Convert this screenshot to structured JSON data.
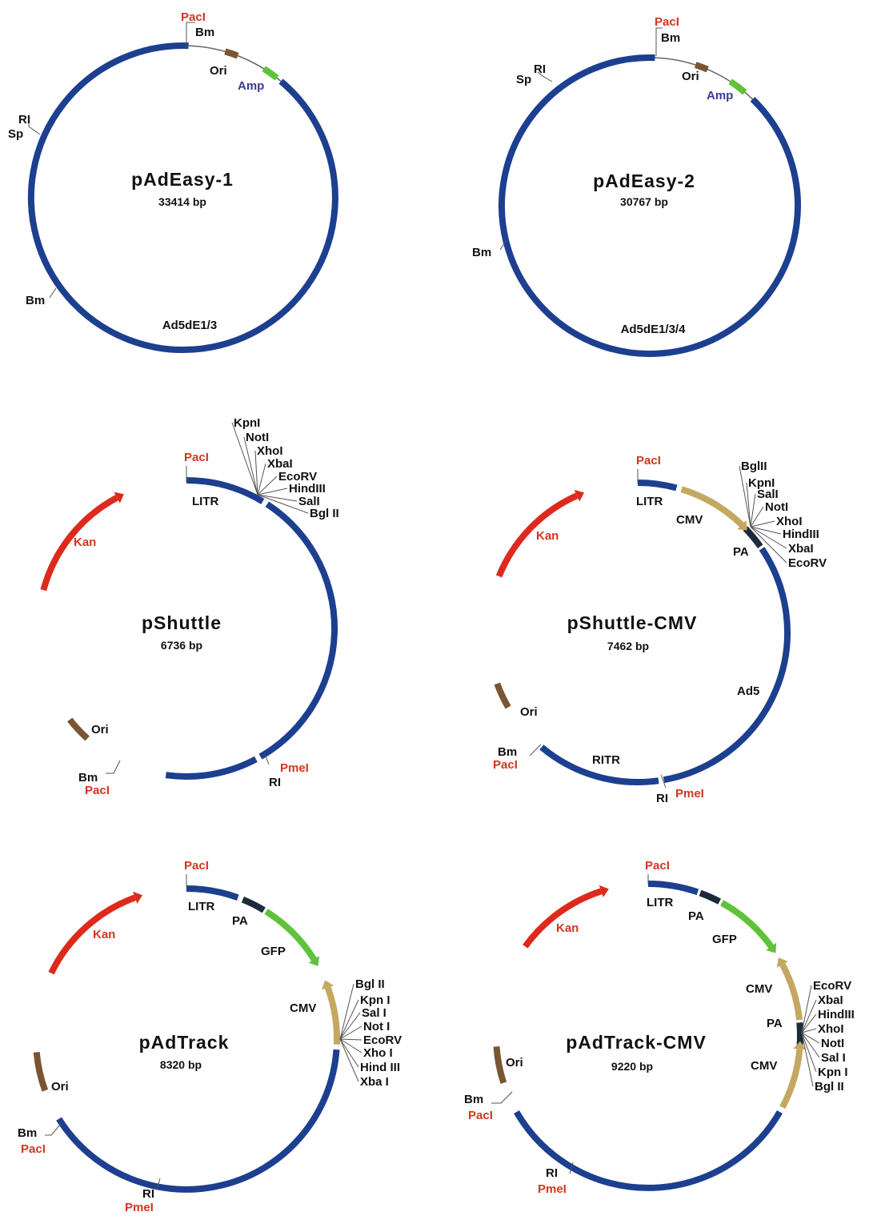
{
  "colors": {
    "backbone": "#1d3f8f",
    "thin": "#666666",
    "kan": "#dd2a1c",
    "amp": "#5ec23a",
    "gfp": "#5ec23a",
    "cmv": "#c4a861",
    "ori": "#7a5532",
    "pa": "#1c2a3c",
    "red_text": "#d2361e",
    "purple_text": "#3b3a9a"
  },
  "plasmids": [
    {
      "name": "pAdEasy-1",
      "size": "33414 bp",
      "region_label": "Ad5dE1/3",
      "sites": {
        "pac": "PacI",
        "bm1": "Bm",
        "bm2": "Bm",
        "ri": "RI",
        "sp": "Sp"
      },
      "features": {
        "ori": "Ori",
        "amp": "Amp"
      }
    },
    {
      "name": "pAdEasy-2",
      "size": "30767 bp",
      "region_label": "Ad5dE1/3/4",
      "sites": {
        "pac": "PacI",
        "bm1": "Bm",
        "bm2": "Bm",
        "ri": "RI",
        "sp": "Sp"
      },
      "features": {
        "ori": "Ori",
        "amp": "Amp"
      }
    },
    {
      "name": "pShuttle",
      "size": "6736 bp",
      "sites": {
        "pac_top": "PacI",
        "pmel": "PmeI",
        "ri": "RI",
        "bm": "Bm",
        "pac_bottom": "PacI"
      },
      "features": {
        "kan": "Kan",
        "litr": "LITR",
        "ori": "Ori"
      },
      "mcs": [
        "KpnI",
        "NotI",
        "XhoI",
        "XbaI",
        "EcoRV",
        "HindIII",
        "SalI",
        "Bgl II"
      ]
    },
    {
      "name": "pShuttle-CMV",
      "size": "7462 bp",
      "sites": {
        "pac_top": "PacI",
        "bm": "Bm",
        "pac_bottom": "PacI",
        "ri": "RI",
        "pmel": "PmeI"
      },
      "features": {
        "kan": "Kan",
        "litr": "LITR",
        "cmv": "CMV",
        "pa": "PA",
        "ad5": "Ad5",
        "ritr": "RITR",
        "ori": "Ori"
      },
      "mcs": [
        "BglII",
        "KpnI",
        "SalI",
        "NotI",
        "XhoI",
        "HindIII",
        "XbaI",
        "EcoRV"
      ]
    },
    {
      "name": "pAdTrack",
      "size": "8320 bp",
      "sites": {
        "pac_top": "PacI",
        "bm": "Bm",
        "pac_bottom": "PacI",
        "ri": "RI",
        "pmel": "PmeI"
      },
      "features": {
        "kan": "Kan",
        "litr": "LITR",
        "pa": "PA",
        "gfp": "GFP",
        "cmv": "CMV",
        "ori": "Ori"
      },
      "mcs": [
        "Bgl II",
        "Kpn I",
        "Sal I",
        "Not I",
        "EcoRV",
        "Xho I",
        "Hind III",
        "Xba I"
      ]
    },
    {
      "name": "pAdTrack-CMV",
      "size": "9220 bp",
      "sites": {
        "pac_top": "PacI",
        "bm": "Bm",
        "pac_bottom": "PacI",
        "ri": "RI",
        "pmel": "PmeI"
      },
      "features": {
        "kan": "Kan",
        "litr": "LITR",
        "pa_top": "PA",
        "gfp": "GFP",
        "cmv1": "CMV",
        "pa_mid": "PA",
        "cmv2": "CMV",
        "ori": "Ori"
      },
      "mcs": [
        "EcoRV",
        "XbaI",
        "HindIII",
        "XhoI",
        "NotI",
        "Sal I",
        "Kpn I",
        "Bgl II"
      ]
    }
  ]
}
